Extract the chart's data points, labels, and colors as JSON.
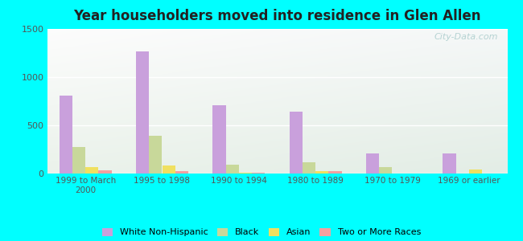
{
  "title": "Year householders moved into residence in Glen Allen",
  "categories": [
    "1999 to March\n2000",
    "1995 to 1998",
    "1990 to 1994",
    "1980 to 1989",
    "1970 to 1979",
    "1969 or earlier"
  ],
  "series": {
    "White Non-Hispanic": [
      810,
      1270,
      710,
      645,
      205,
      210
    ],
    "Black": [
      275,
      395,
      95,
      115,
      65,
      0
    ],
    "Asian": [
      65,
      80,
      5,
      25,
      0,
      45
    ],
    "Two or More Races": [
      35,
      25,
      5,
      25,
      0,
      0
    ]
  },
  "colors": {
    "White Non-Hispanic": "#c9a0dc",
    "Black": "#c8d89a",
    "Asian": "#f0e060",
    "Two or More Races": "#f4a0a0"
  },
  "ylim": [
    0,
    1500
  ],
  "yticks": [
    0,
    500,
    1000,
    1500
  ],
  "figure_bg": "#00ffff",
  "watermark": "City-Data.com",
  "bar_width": 0.17
}
